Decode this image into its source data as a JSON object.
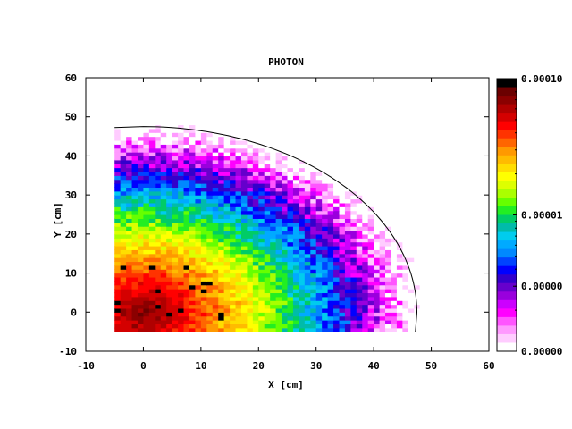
{
  "chart_data": {
    "type": "heatmap",
    "title": "PHOTON",
    "xlabel": "X [cm]",
    "ylabel": "Y [cm]",
    "xlim": [
      -10,
      60
    ],
    "ylim": [
      -10,
      60
    ],
    "x_ticks": [
      -10,
      0,
      10,
      20,
      30,
      40,
      50,
      60
    ],
    "y_ticks": [
      -10,
      0,
      10,
      20,
      30,
      40,
      50,
      60
    ],
    "x_tick_labels": [
      "-10",
      "0",
      "10",
      "20",
      "30",
      "40",
      "50",
      "60"
    ],
    "y_tick_labels": [
      "-10",
      "0",
      "10",
      "20",
      "30",
      "40",
      "50",
      "60"
    ],
    "data_extent": {
      "x": [
        -5,
        55
      ],
      "y": [
        -5,
        55
      ]
    },
    "grid_cells": {
      "nx": 60,
      "ny": 60
    },
    "colorbar": {
      "scale": "log",
      "range": [
        1e-06,
        0.0001
      ],
      "tick_labels": [
        "0.00010",
        "0.00001",
        "0.00000",
        "0.00000"
      ],
      "tick_values": [
        0.0001,
        1e-05,
        3e-06,
        1e-06
      ],
      "colors": [
        "#000000",
        "#6b0000",
        "#8b0000",
        "#b00000",
        "#d40000",
        "#ff0000",
        "#ff3300",
        "#ff6600",
        "#ff9900",
        "#ffbb00",
        "#ffdd00",
        "#ffff00",
        "#ddff00",
        "#aaff00",
        "#66ff00",
        "#22ee22",
        "#00cc66",
        "#00bbaa",
        "#00ccee",
        "#00aaff",
        "#0088ff",
        "#0044ff",
        "#0000ff",
        "#3300cc",
        "#6600cc",
        "#9900dd",
        "#cc00ff",
        "#ff00ff",
        "#ff55ff",
        "#ff99ff",
        "#ffccff",
        "#ffffff"
      ]
    },
    "field_model": {
      "center": [
        0,
        0
      ],
      "peak_log10": -4.1,
      "falloff_per_cm": 0.046,
      "noise_amplitude": 0.35
    },
    "contour": {
      "shape": "circle-arc",
      "center": [
        0,
        0
      ],
      "radius": 47.5,
      "value_log10": -5
    }
  }
}
